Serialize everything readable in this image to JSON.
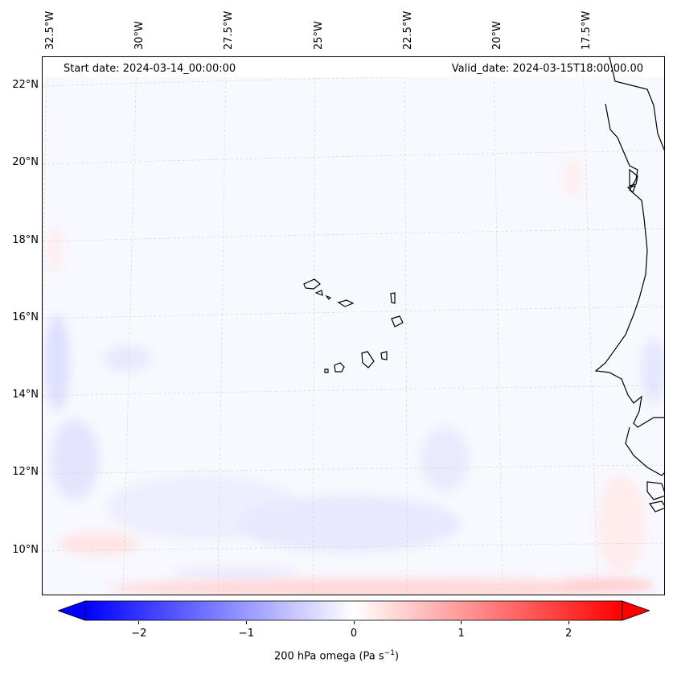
{
  "map": {
    "lon_labels": [
      "32.5°W",
      "30°W",
      "27.5°W",
      "25°W",
      "22.5°W",
      "20°W",
      "17.5°W"
    ],
    "lat_labels": [
      "22°N",
      "20°N",
      "18°N",
      "16°N",
      "14°N",
      "12°N",
      "10°N"
    ],
    "start_date": "Start date: 2024-03-14_00:00:00",
    "valid_date": "Valid_date: 2024-03-15T18:00:00.00",
    "coast_color": "#000000",
    "grid_color": "#c8c8c8"
  },
  "colorbar": {
    "ticks": [
      "−2",
      "−1",
      "0",
      "1",
      "2"
    ],
    "tick_values": [
      -2,
      -1,
      0,
      1,
      2
    ],
    "range": [
      -2.5,
      2.5
    ],
    "label_main": "200 hPa omega (Pa s",
    "label_sup": "−1",
    "label_end": ")",
    "cmap": "bwr",
    "low_color": "#0000ff",
    "mid_color": "#ffffff",
    "high_color": "#ff0000"
  }
}
